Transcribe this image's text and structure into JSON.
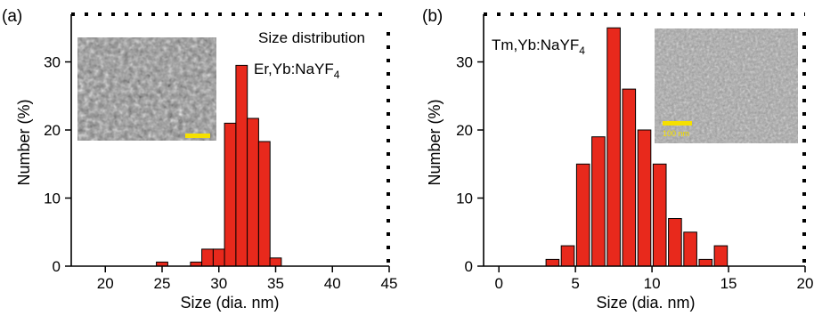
{
  "chart_data": [
    {
      "type": "bar",
      "panel_label": "(a)",
      "xlabel": "Size (dia. nm)",
      "ylabel": "Number (%)",
      "xlim": [
        17,
        45
      ],
      "ylim": [
        0,
        37
      ],
      "xticks": [
        20,
        25,
        30,
        35,
        40,
        45
      ],
      "yticks": [
        0,
        10,
        20,
        30
      ],
      "bar_width": 1,
      "x": [
        25,
        28,
        29,
        30,
        31,
        32,
        33,
        34,
        35
      ],
      "values": [
        0.6,
        0.6,
        2.5,
        2.5,
        21,
        29.5,
        21.7,
        18.3,
        1.2
      ],
      "annotations": [
        "Size distribution",
        "Er,Yb:NaYF4"
      ],
      "grid": false,
      "inset": "TEM micrograph (top-left)",
      "colors": {
        "bar": "#e8291c",
        "scale_bar": "#f5e000"
      }
    },
    {
      "type": "bar",
      "panel_label": "(b)",
      "xlabel": "Size (dia. nm)",
      "ylabel": "Number (%)",
      "xlim": [
        -1,
        20
      ],
      "ylim": [
        0,
        37
      ],
      "xticks": [
        0,
        5,
        10,
        15,
        20
      ],
      "yticks": [
        0,
        10,
        20,
        30
      ],
      "bar_width": 0.85,
      "x": [
        3.5,
        4.5,
        5.5,
        6.5,
        7.5,
        8.5,
        9.5,
        10.5,
        11.5,
        12.5,
        13.5,
        14.5
      ],
      "values": [
        1,
        3,
        15,
        19,
        35,
        26,
        20,
        15,
        7,
        5,
        1,
        3
      ],
      "annotations": [
        "Tm,Yb:NaYF4"
      ],
      "grid": false,
      "inset": "TEM micrograph (top-right)",
      "inset_scale_label": "100 nm",
      "colors": {
        "bar": "#e8291c",
        "scale_bar": "#f5e000"
      }
    }
  ]
}
